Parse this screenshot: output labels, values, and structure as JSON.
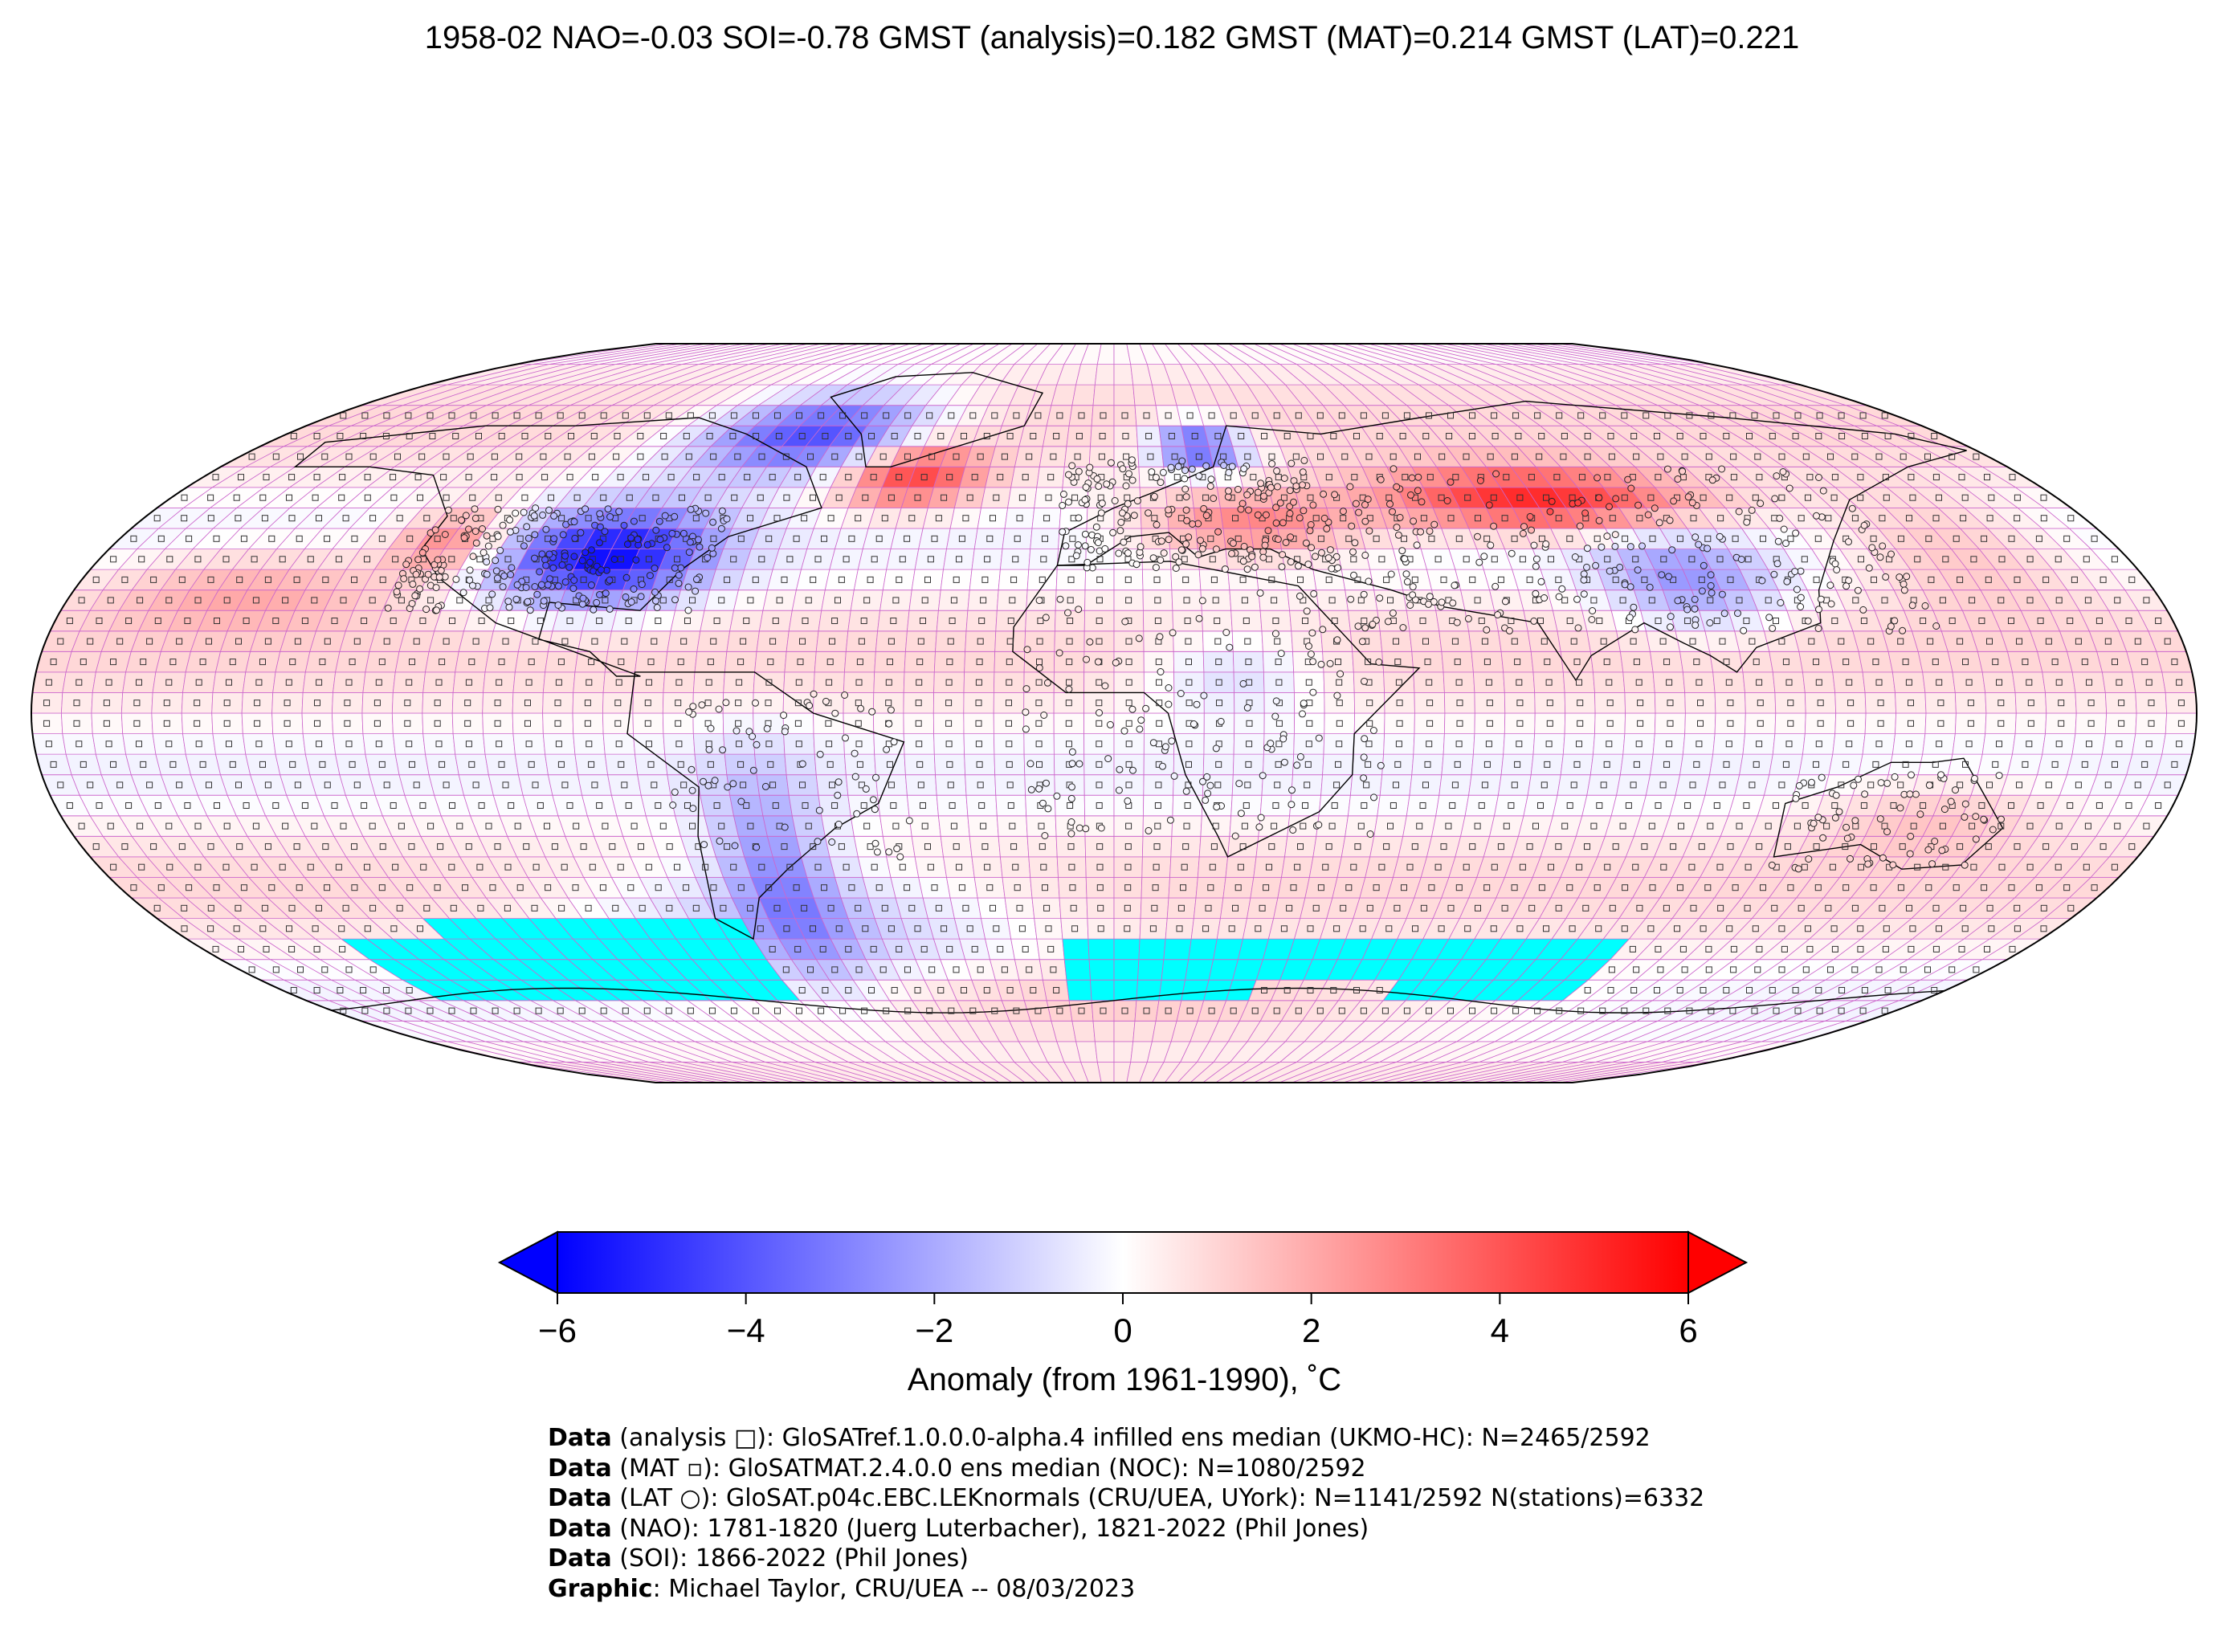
{
  "title": "1958-02 NAO=-0.03 SOI=-0.78 GMST (analysis)=0.182 GMST (MAT)=0.214 GMST (LAT)=0.221",
  "colorbar": {
    "label": "Anomaly (from 1961-1990), ˚C",
    "ticks": [
      "−6",
      "−4",
      "−2",
      "0",
      "2",
      "4",
      "6"
    ],
    "vmin": -6,
    "vmax": 6,
    "extend": "both",
    "colors": {
      "cold": "#0000ff",
      "neutral": "#ffffff",
      "warm": "#ff0000"
    }
  },
  "map": {
    "projection": "Robinson",
    "grid_color": "#cc66cc",
    "missing_color": "#00ffff",
    "station_marker": "circle",
    "analysis_marker": "square"
  },
  "credits": [
    {
      "label": "Data",
      "text": " (analysis □): GloSATref.1.0.0.0-alpha.4 infilled ens median (UKMO-HC): N=2465/2592"
    },
    {
      "label": "Data",
      "text": " (MAT ▫): GloSATMAT.2.4.0.0 ens median (NOC): N=1080/2592"
    },
    {
      "label": "Data",
      "text": " (LAT ○): GloSAT.p04c.EBC.LEKnormals (CRU/UEA, UYork): N=1141/2592 N(stations)=6332"
    },
    {
      "label": "Data",
      "text": " (NAO): 1781-1820 (Juerg Luterbacher), 1821-2022 (Phil Jones)"
    },
    {
      "label": "Data",
      "text": " (SOI): 1866-2022 (Phil Jones)"
    },
    {
      "label": "Graphic",
      "text": ": Michael Taylor, CRU/UEA -- 08/03/2023"
    }
  ]
}
